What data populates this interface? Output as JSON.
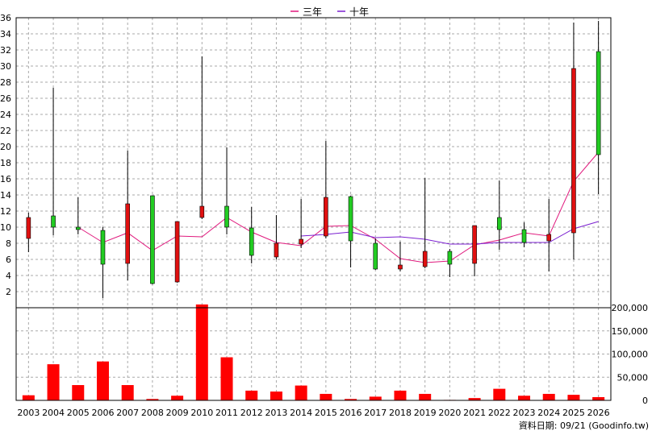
{
  "chart_data": {
    "type": "candlestick+line+bar",
    "legend": [
      {
        "name": "三年",
        "color": "#e0197d"
      },
      {
        "name": "十年",
        "color": "#7b1fd0"
      }
    ],
    "legend_position": "top-center",
    "grid": true,
    "categories": [
      "2003",
      "2004",
      "2005",
      "2006",
      "2007",
      "2008",
      "2009",
      "2010",
      "2011",
      "2012",
      "2013",
      "2014",
      "2015",
      "2016",
      "2017",
      "2018",
      "2019",
      "2020",
      "2021",
      "2022",
      "2023",
      "2024",
      "2025",
      "2026"
    ],
    "price_axis": {
      "ylim": [
        0,
        36
      ],
      "ticks": [
        2,
        4,
        6,
        8,
        10,
        12,
        14,
        16,
        18,
        20,
        22,
        24,
        26,
        28,
        30,
        32,
        34,
        36
      ]
    },
    "volume_axis": {
      "ylim": [
        0,
        200000
      ],
      "ticks": [
        0,
        50000,
        100000,
        150000,
        200000
      ],
      "tick_labels": [
        "0",
        "50,000",
        "100,000",
        "150,000",
        "200,000"
      ]
    },
    "candles": [
      {
        "year": "2003",
        "open": 8.6,
        "close": 11.2,
        "high": 11.8,
        "low": 6.9,
        "color": "red"
      },
      {
        "year": "2004",
        "open": 10.0,
        "close": 11.4,
        "high": 27.3,
        "low": 9.0,
        "color": "green"
      },
      {
        "year": "2005",
        "open": 10.0,
        "close": 9.7,
        "high": 13.7,
        "low": 9.1,
        "color": "green"
      },
      {
        "year": "2006",
        "open": 9.6,
        "close": 5.4,
        "high": 10.0,
        "low": 1.2,
        "color": "green"
      },
      {
        "year": "2007",
        "open": 5.5,
        "close": 12.9,
        "high": 19.5,
        "low": 3.4,
        "color": "red"
      },
      {
        "year": "2008",
        "open": 13.9,
        "close": 3.0,
        "high": 13.9,
        "low": 2.9,
        "color": "green"
      },
      {
        "year": "2009",
        "open": 3.2,
        "close": 10.7,
        "high": 10.7,
        "low": 3.1,
        "color": "red"
      },
      {
        "year": "2010",
        "open": 11.2,
        "close": 12.6,
        "high": 31.2,
        "low": 11.0,
        "color": "red"
      },
      {
        "year": "2011",
        "open": 12.6,
        "close": 10.0,
        "high": 19.9,
        "low": 9.1,
        "color": "green"
      },
      {
        "year": "2012",
        "open": 9.9,
        "close": 6.5,
        "high": 12.5,
        "low": 5.5,
        "color": "green"
      },
      {
        "year": "2013",
        "open": 6.3,
        "close": 8.0,
        "high": 11.5,
        "low": 6.0,
        "color": "red"
      },
      {
        "year": "2014",
        "open": 7.9,
        "close": 8.5,
        "high": 13.5,
        "low": 7.4,
        "color": "red"
      },
      {
        "year": "2015",
        "open": 8.9,
        "close": 13.7,
        "high": 20.7,
        "low": 8.6,
        "color": "red"
      },
      {
        "year": "2016",
        "open": 13.8,
        "close": 8.3,
        "high": 13.9,
        "low": 5.0,
        "color": "green"
      },
      {
        "year": "2017",
        "open": 8.0,
        "close": 4.8,
        "high": 8.6,
        "low": 4.7,
        "color": "green"
      },
      {
        "year": "2018",
        "open": 4.8,
        "close": 5.3,
        "high": 8.2,
        "low": 4.5,
        "color": "red"
      },
      {
        "year": "2019",
        "open": 5.1,
        "close": 7.0,
        "high": 16.1,
        "low": 4.9,
        "color": "red"
      },
      {
        "year": "2020",
        "open": 7.0,
        "close": 5.4,
        "high": 7.3,
        "low": 3.8,
        "color": "green"
      },
      {
        "year": "2021",
        "open": 5.5,
        "close": 10.2,
        "high": 10.2,
        "low": 3.9,
        "color": "red"
      },
      {
        "year": "2022",
        "open": 11.2,
        "close": 9.7,
        "high": 15.8,
        "low": 7.2,
        "color": "green"
      },
      {
        "year": "2023",
        "open": 9.7,
        "close": 8.1,
        "high": 10.6,
        "low": 7.5,
        "color": "green"
      },
      {
        "year": "2024",
        "open": 8.3,
        "close": 9.1,
        "high": 13.5,
        "low": 4.5,
        "color": "red"
      },
      {
        "year": "2025",
        "open": 9.3,
        "close": 29.7,
        "high": 35.4,
        "low": 6.0,
        "color": "red"
      },
      {
        "year": "2026",
        "open": 31.8,
        "close": 19.0,
        "high": 35.6,
        "low": 14.1,
        "color": "green"
      }
    ],
    "series": [
      {
        "name": "三年",
        "color": "#e0197d",
        "values": [
          null,
          null,
          10.0,
          8.1,
          9.3,
          7.1,
          8.9,
          8.8,
          11.2,
          9.4,
          8.1,
          7.7,
          10.1,
          10.2,
          8.5,
          6.1,
          5.6,
          5.8,
          7.8,
          8.4,
          9.3,
          8.9,
          15.7,
          19.3
        ]
      },
      {
        "name": "十年",
        "color": "#7b1fd0",
        "values": [
          null,
          null,
          null,
          null,
          null,
          null,
          null,
          null,
          null,
          null,
          null,
          8.9,
          9.1,
          9.4,
          8.7,
          8.8,
          8.5,
          7.9,
          7.9,
          8.1,
          8.1,
          8.1,
          9.8,
          10.7
        ]
      }
    ],
    "volume": {
      "color": "#ff0000",
      "values": [
        11000,
        78000,
        33000,
        84000,
        33000,
        3000,
        10000,
        207000,
        93000,
        21000,
        19000,
        32000,
        14000,
        3000,
        8000,
        21000,
        14000,
        1000,
        5000,
        25000,
        10000,
        14000,
        12000,
        7000
      ]
    }
  },
  "footer": {
    "text": "資料日期: 09/21  (Goodinfo.tw)"
  }
}
